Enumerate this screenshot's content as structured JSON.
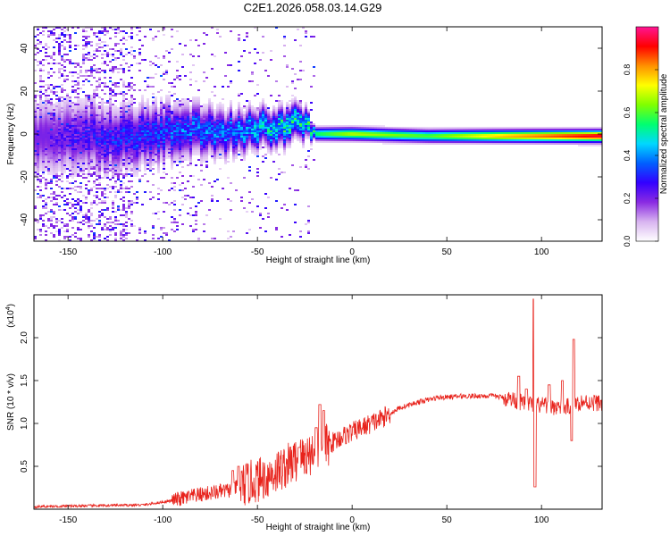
{
  "title": "C2E1.2026.058.03.14.G29",
  "chart_data": [
    {
      "type": "heatmap",
      "name": "spectrogram",
      "xlabel": "Height of straight line (km)",
      "ylabel": "Frequency (Hz)",
      "xlim": [
        -168,
        132
      ],
      "ylim": [
        -50,
        50
      ],
      "xticks": [
        -150,
        -100,
        -50,
        0,
        50,
        100
      ],
      "yticks": [
        -40,
        -20,
        0,
        20,
        40
      ],
      "colorbar": {
        "label": "Normalized spectral amplitude",
        "range": [
          0,
          1
        ],
        "ticks": [
          "0.0",
          "0.2",
          "0.4",
          "0.6",
          "0.8"
        ],
        "tick_values": [
          0.0,
          0.2,
          0.4,
          0.6,
          0.8
        ],
        "colors": [
          "#ffffff",
          "#d8b4f0",
          "#8a2be2",
          "#3300ff",
          "#0060ff",
          "#00d8ff",
          "#00ff70",
          "#80ff00",
          "#ffff00",
          "#ff9000",
          "#ff0000",
          "#ff1493"
        ]
      },
      "ridge": [
        {
          "x": -160,
          "f": -2,
          "amp": 0.2,
          "spread": 14
        },
        {
          "x": -120,
          "f": -1,
          "amp": 0.28,
          "spread": 12
        },
        {
          "x": -90,
          "f": 1,
          "amp": 0.33,
          "spread": 10
        },
        {
          "x": -60,
          "f": 1,
          "amp": 0.36,
          "spread": 8
        },
        {
          "x": -45,
          "f": 3,
          "amp": 0.42,
          "spread": 7
        },
        {
          "x": -35,
          "f": 4,
          "amp": 0.47,
          "spread": 7
        },
        {
          "x": -25,
          "f": 6,
          "amp": 0.45,
          "spread": 6
        },
        {
          "x": -20,
          "f": 0,
          "amp": 0.55,
          "spread": 2.5
        },
        {
          "x": 0,
          "f": 0,
          "amp": 0.68,
          "spread": 2.5
        },
        {
          "x": 40,
          "f": -1,
          "amp": 0.6,
          "spread": 2.5
        },
        {
          "x": 80,
          "f": -1,
          "amp": 0.78,
          "spread": 2.5
        },
        {
          "x": 132,
          "f": -1,
          "amp": 0.95,
          "spread": 2.5
        }
      ]
    },
    {
      "type": "line",
      "name": "snr",
      "xlabel": "Height of straight line (km)",
      "ylabel": "SNR (10 * v/v)",
      "scale_note": "(x10",
      "scale_exp": "4",
      "scale_close": ")",
      "xlim": [
        -168,
        132
      ],
      "ylim": [
        0,
        2.5
      ],
      "xticks": [
        -150,
        -100,
        -50,
        0,
        50,
        100
      ],
      "yticks": [
        "0.5",
        "1.0",
        "1.5",
        "2.0"
      ],
      "ytick_values": [
        0.5,
        1.0,
        1.5,
        2.0
      ],
      "line_color": "#e8231c",
      "trend": [
        [
          -168,
          0.03
        ],
        [
          -110,
          0.05
        ],
        [
          -95,
          0.1
        ],
        [
          -80,
          0.17
        ],
        [
          -65,
          0.22
        ],
        [
          -55,
          0.3
        ],
        [
          -45,
          0.38
        ],
        [
          -35,
          0.5
        ],
        [
          -25,
          0.62
        ],
        [
          -15,
          0.72
        ],
        [
          -5,
          0.85
        ],
        [
          5,
          0.95
        ],
        [
          15,
          1.05
        ],
        [
          25,
          1.18
        ],
        [
          35,
          1.25
        ],
        [
          45,
          1.3
        ],
        [
          60,
          1.32
        ],
        [
          75,
          1.32
        ],
        [
          85,
          1.28
        ],
        [
          90,
          1.24
        ],
        [
          95,
          1.22
        ],
        [
          105,
          1.2
        ],
        [
          112,
          1.18
        ],
        [
          120,
          1.25
        ],
        [
          132,
          1.24
        ]
      ],
      "spikes": [
        [
          -63,
          0.45
        ],
        [
          -60,
          0.5
        ],
        [
          -19,
          0.95
        ],
        [
          -17,
          1.22
        ],
        [
          -15,
          1.15
        ],
        [
          -28,
          0.72
        ],
        [
          88,
          1.55
        ],
        [
          92,
          1.4
        ],
        [
          96,
          2.45
        ],
        [
          96.5,
          0.26
        ],
        [
          104,
          1.45
        ],
        [
          111,
          1.5
        ],
        [
          116,
          0.8
        ],
        [
          117,
          1.98
        ]
      ]
    }
  ]
}
